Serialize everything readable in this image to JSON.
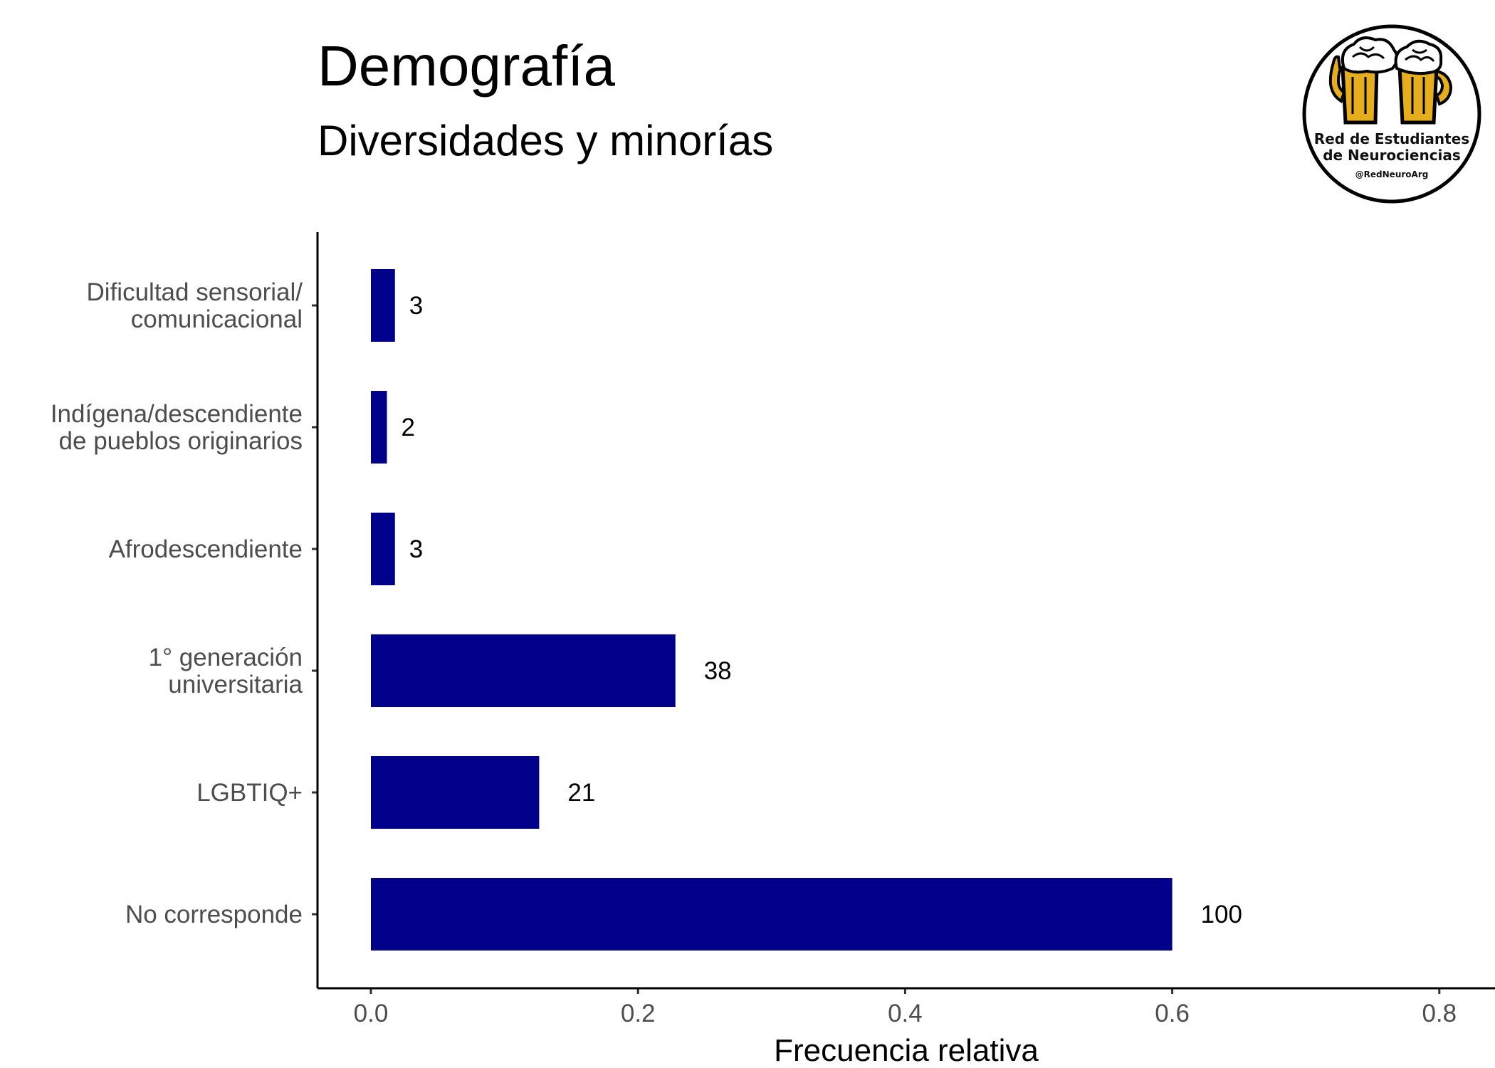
{
  "chart_data": {
    "type": "bar",
    "orientation": "horizontal",
    "title": "Demografía",
    "subtitle": "Diversidades y minorías",
    "xlabel": "Frecuencia relativa",
    "xlim": [
      0,
      0.8
    ],
    "xticks": [
      0.0,
      0.2,
      0.4,
      0.6,
      0.8
    ],
    "xtick_labels": [
      "0.0",
      "0.2",
      "0.4",
      "0.6",
      "0.8"
    ],
    "categories": [
      [
        "Dificultad sensorial/",
        "comunicacional"
      ],
      [
        "Indígena/descendiente",
        "de pueblos originarios"
      ],
      [
        "Afrodescendiente"
      ],
      [
        "1° generación",
        "universitaria"
      ],
      [
        "LGBTIQ+"
      ],
      [
        "No corresponde"
      ]
    ],
    "values": [
      0.018,
      0.012,
      0.018,
      0.228,
      0.126,
      0.6
    ],
    "data_labels": [
      "3",
      "2",
      "3",
      "38",
      "21",
      "100"
    ],
    "bar_color": "#00008b",
    "grid": false,
    "legend": "none"
  },
  "logo": {
    "name": "red-neuro-arg-logo",
    "line1": "Red de Estudiantes",
    "line2": "de Neurociencias",
    "handle": "@RedNeuroArg",
    "beer_color": "#e6ad1d"
  }
}
